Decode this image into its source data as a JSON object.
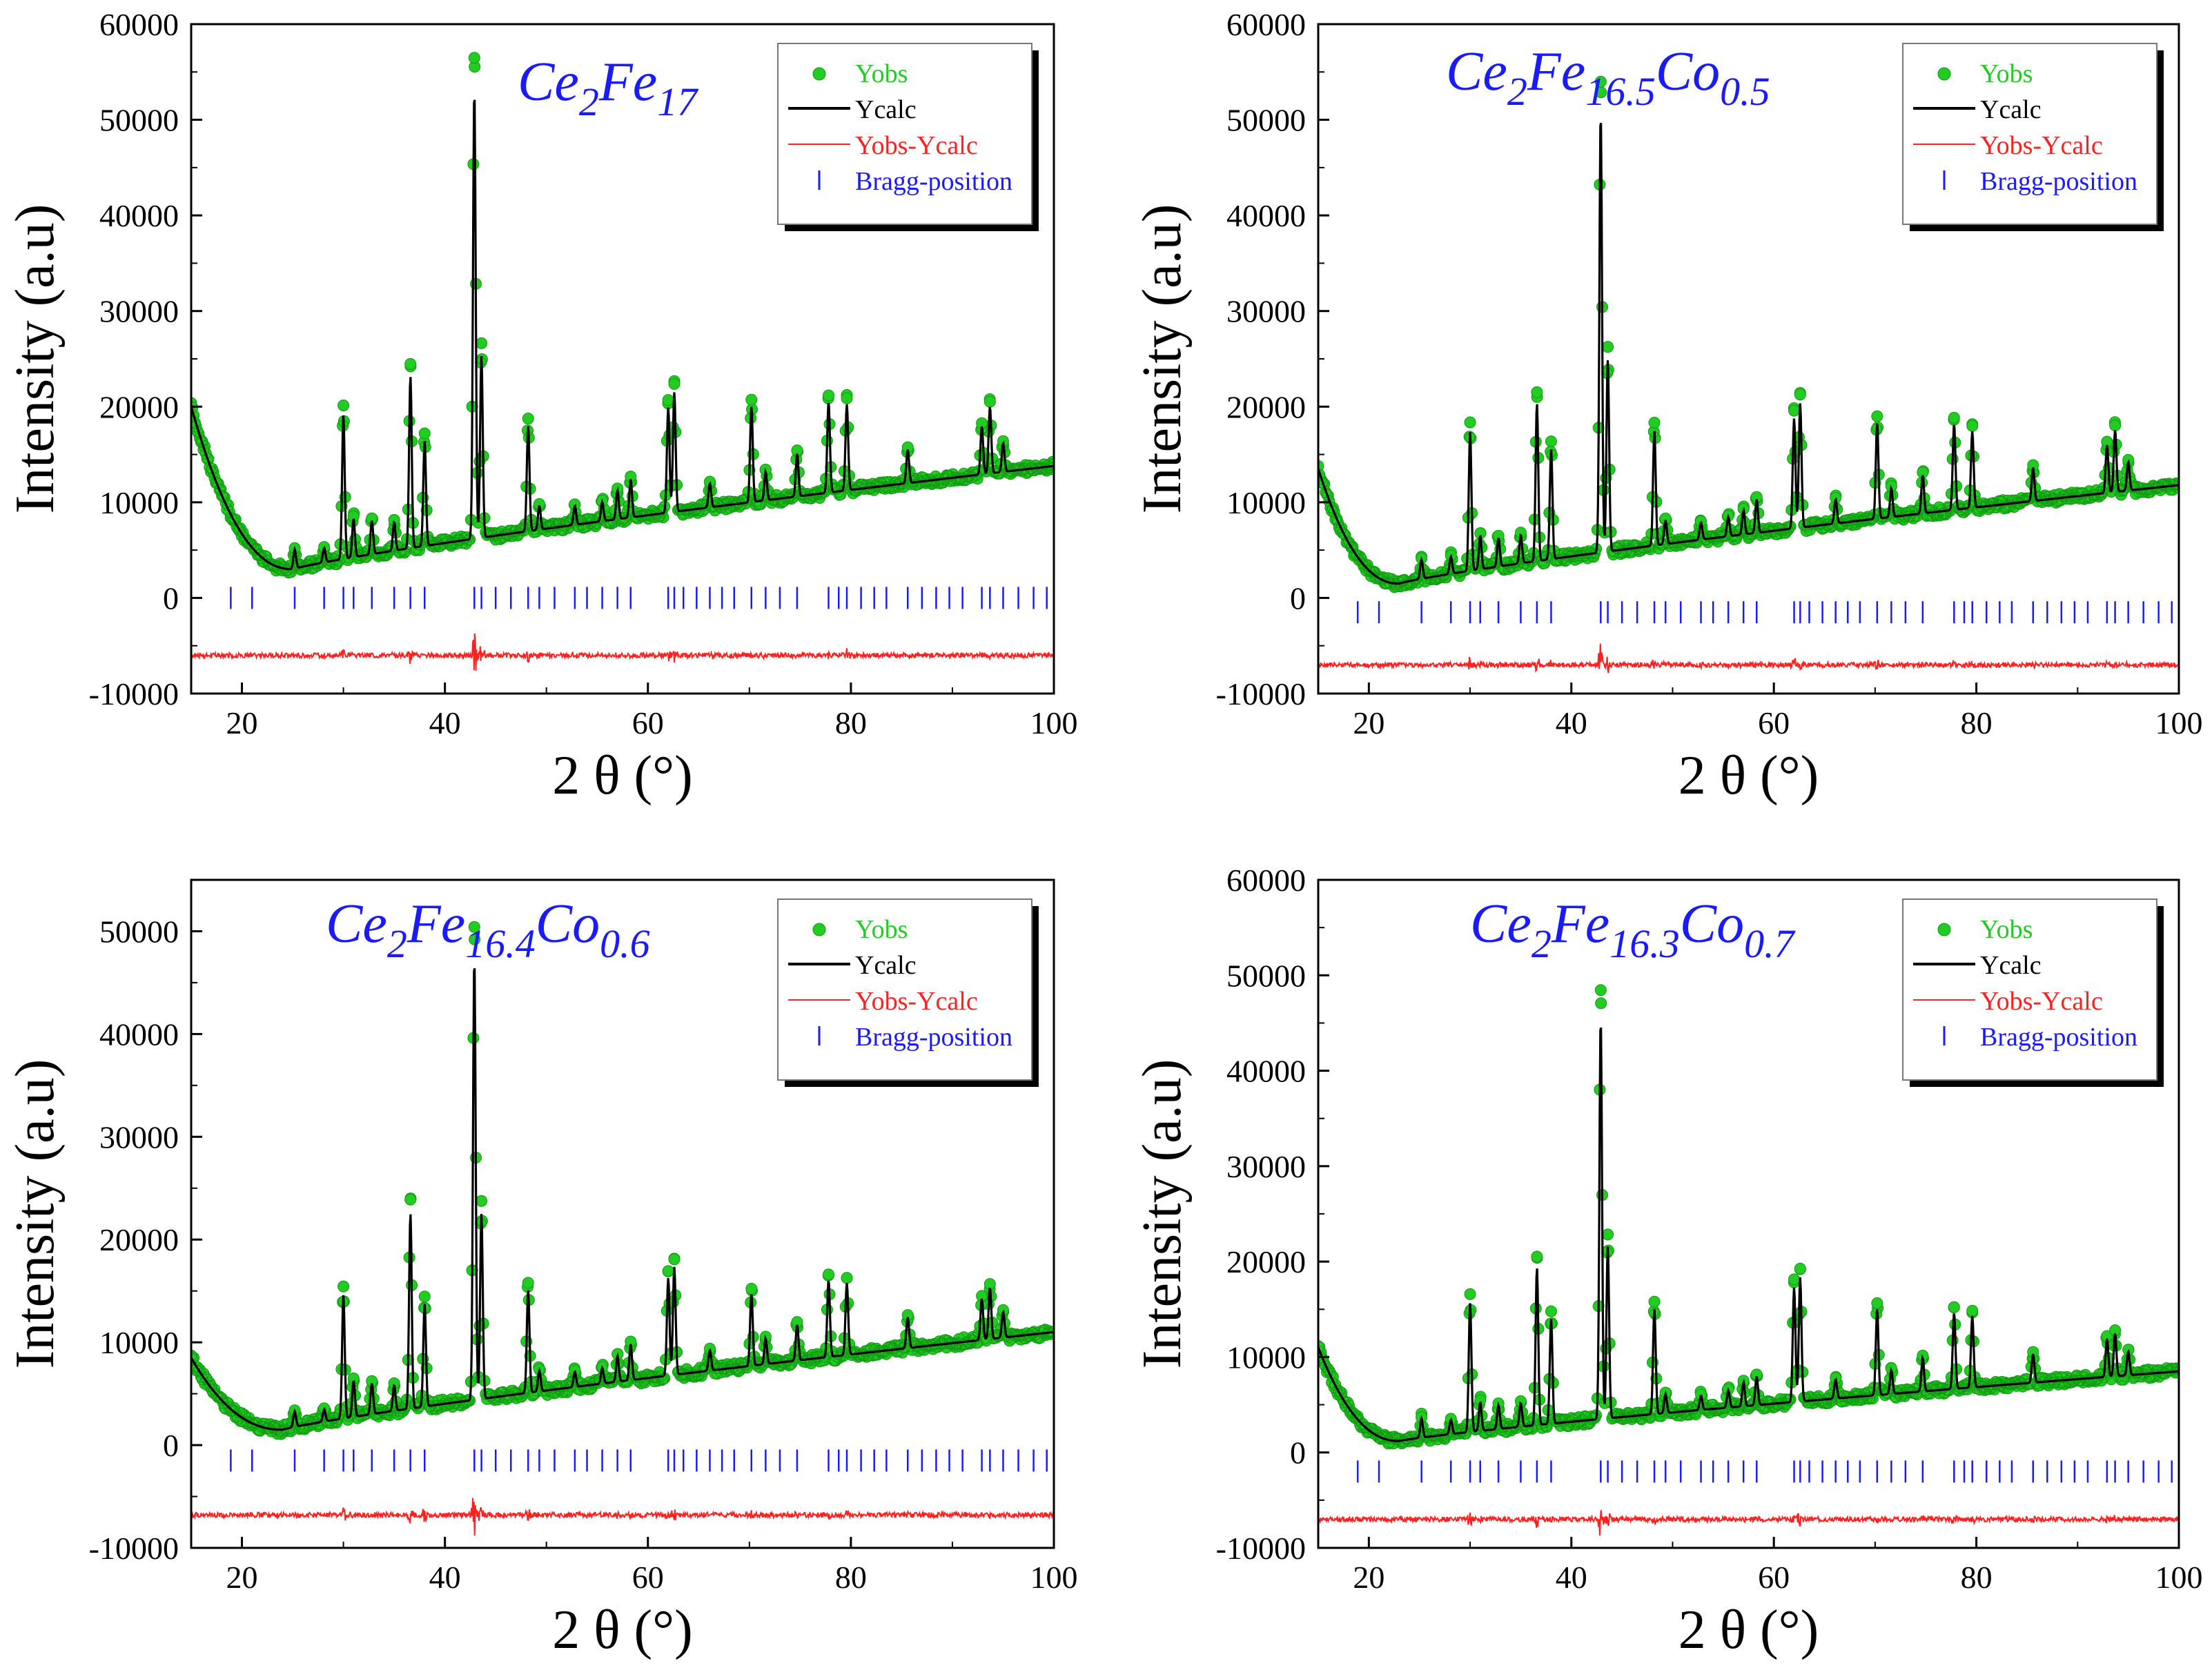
{
  "figure": {
    "legend_labels": {
      "yobs": "Yobs",
      "ycalc": "Ycalc",
      "diff": "Yobs-Ycalc",
      "bragg": "Bragg-position"
    },
    "colors": {
      "yobs": "#22cc22",
      "ycalc": "#000000",
      "diff": "#ff2020",
      "bragg": "#1a1aff",
      "title": "#1a1aff"
    }
  },
  "chart_data": [
    {
      "type": "line",
      "title": "Ce2Fe17",
      "title_parts": [
        {
          "text": "Ce",
          "sub": false
        },
        {
          "text": "2",
          "sub": true
        },
        {
          "text": "Fe",
          "sub": false
        },
        {
          "text": "17",
          "sub": true
        }
      ],
      "xlabel": "2 θ (°)",
      "ylabel": "Intensity (a.u)",
      "xlim": [
        15,
        100
      ],
      "ylim": [
        -10000,
        60000
      ],
      "yticks": [
        -10000,
        0,
        10000,
        20000,
        30000,
        40000,
        50000,
        60000
      ],
      "xticks": [
        20,
        40,
        60,
        80,
        100
      ],
      "legend_position": "top-right",
      "background": {
        "start": 20000,
        "min_value": 3000,
        "min_x": 25,
        "end": 13800
      },
      "peaks": [
        [
          25.2,
          2000
        ],
        [
          28.1,
          1500
        ],
        [
          30.0,
          15000
        ],
        [
          31.0,
          4000
        ],
        [
          32.8,
          3500
        ],
        [
          35.0,
          3000
        ],
        [
          36.6,
          18000
        ],
        [
          38.0,
          11000
        ],
        [
          42.9,
          47000
        ],
        [
          43.6,
          19000
        ],
        [
          48.2,
          11000
        ],
        [
          49.3,
          2500
        ],
        [
          52.8,
          2000
        ],
        [
          55.5,
          2000
        ],
        [
          57.0,
          3000
        ],
        [
          58.3,
          4000
        ],
        [
          62.0,
          11000
        ],
        [
          62.6,
          12500
        ],
        [
          66.1,
          2500
        ],
        [
          70.2,
          10000
        ],
        [
          71.6,
          3000
        ],
        [
          74.7,
          4500
        ],
        [
          77.8,
          9500
        ],
        [
          79.6,
          9000
        ],
        [
          85.6,
          3500
        ],
        [
          92.9,
          5000
        ],
        [
          93.7,
          7000
        ],
        [
          95.0,
          3000
        ]
      ],
      "bragg_positions": [
        18.9,
        21.0,
        25.2,
        28.1,
        30.0,
        31.0,
        32.8,
        35.0,
        36.6,
        38.0,
        42.9,
        43.6,
        45.0,
        46.5,
        48.2,
        49.3,
        50.8,
        52.8,
        54.0,
        55.5,
        57.0,
        58.3,
        62.0,
        62.6,
        63.5,
        64.8,
        66.1,
        67.3,
        68.5,
        70.2,
        71.6,
        73.0,
        74.7,
        77.8,
        78.8,
        79.6,
        81.0,
        82.3,
        83.5,
        85.6,
        87.0,
        88.4,
        89.7,
        91.0,
        92.9,
        93.7,
        95.0,
        96.5,
        98.0,
        99.3
      ],
      "bragg_level": 0,
      "diff_offset": -6000,
      "series": [
        {
          "name": "Yobs"
        },
        {
          "name": "Ycalc"
        },
        {
          "name": "Yobs-Ycalc"
        },
        {
          "name": "Bragg-position"
        }
      ]
    },
    {
      "type": "line",
      "title": "Ce2Fe16.5Co0.5",
      "title_parts": [
        {
          "text": "Ce",
          "sub": false
        },
        {
          "text": "2",
          "sub": true
        },
        {
          "text": "Fe",
          "sub": false
        },
        {
          "text": "16.5",
          "sub": true
        },
        {
          "text": "Co",
          "sub": false
        },
        {
          "text": "0.5",
          "sub": true
        }
      ],
      "xlabel": "2 θ (°)",
      "ylabel": "Intensity (a.u)",
      "xlim": [
        15,
        100
      ],
      "ylim": [
        -10000,
        60000
      ],
      "yticks": [
        -10000,
        0,
        10000,
        20000,
        30000,
        40000,
        50000,
        60000
      ],
      "xticks": [
        20,
        40,
        60,
        80,
        100
      ],
      "legend_position": "top-right",
      "background": {
        "start": 13500,
        "min_value": 1500,
        "min_x": 23,
        "end": 11800
      },
      "peaks": [
        [
          25.2,
          2000
        ],
        [
          28.1,
          1800
        ],
        [
          30.0,
          14500
        ],
        [
          31.0,
          3500
        ],
        [
          32.8,
          3000
        ],
        [
          35.0,
          3000
        ],
        [
          36.6,
          16500
        ],
        [
          38.0,
          11500
        ],
        [
          42.9,
          46000
        ],
        [
          43.6,
          20000
        ],
        [
          48.2,
          12000
        ],
        [
          49.3,
          2500
        ],
        [
          52.8,
          1800
        ],
        [
          55.5,
          2000
        ],
        [
          57.0,
          2500
        ],
        [
          58.3,
          3500
        ],
        [
          62.0,
          11500
        ],
        [
          62.6,
          13000
        ],
        [
          66.1,
          2500
        ],
        [
          70.2,
          10000
        ],
        [
          71.6,
          3000
        ],
        [
          74.7,
          4000
        ],
        [
          77.8,
          9000
        ],
        [
          79.6,
          8000
        ],
        [
          85.6,
          3500
        ],
        [
          92.9,
          5000
        ],
        [
          93.7,
          6500
        ],
        [
          95.0,
          3000
        ]
      ],
      "bragg_positions": [
        18.9,
        21.0,
        25.2,
        28.1,
        30.0,
        31.0,
        32.8,
        35.0,
        36.6,
        38.0,
        42.9,
        43.6,
        45.0,
        46.5,
        48.2,
        49.3,
        50.8,
        52.8,
        54.0,
        55.5,
        57.0,
        58.3,
        62.0,
        62.6,
        63.5,
        64.8,
        66.1,
        67.3,
        68.5,
        70.2,
        71.6,
        73.0,
        74.7,
        77.8,
        78.8,
        79.6,
        81.0,
        82.3,
        83.5,
        85.6,
        87.0,
        88.4,
        89.7,
        91.0,
        92.9,
        93.7,
        95.0,
        96.5,
        98.0,
        99.3
      ],
      "bragg_level": -1500,
      "diff_offset": -7000,
      "series": [
        {
          "name": "Yobs"
        },
        {
          "name": "Ycalc"
        },
        {
          "name": "Yobs-Ycalc"
        },
        {
          "name": "Bragg-position"
        }
      ]
    },
    {
      "type": "line",
      "title": "Ce2Fe16.4Co0.6",
      "title_parts": [
        {
          "text": "Ce",
          "sub": false
        },
        {
          "text": "2",
          "sub": true
        },
        {
          "text": "Fe",
          "sub": false
        },
        {
          "text": "16.4",
          "sub": true
        },
        {
          "text": "Co",
          "sub": false
        },
        {
          "text": "0.6",
          "sub": true
        }
      ],
      "xlabel": "2 θ (°)",
      "ylabel": "Intensity (a.u)",
      "xlim": [
        15,
        100
      ],
      "ylim": [
        -10000,
        55000
      ],
      "yticks": [
        -10000,
        0,
        10000,
        20000,
        30000,
        40000,
        50000
      ],
      "xticks": [
        20,
        40,
        60,
        80,
        100
      ],
      "legend_position": "top-right",
      "background": {
        "start": 8500,
        "min_value": 1500,
        "min_x": 24,
        "end": 11000
      },
      "peaks": [
        [
          25.2,
          1500
        ],
        [
          28.1,
          1200
        ],
        [
          30.0,
          12000
        ],
        [
          31.0,
          3500
        ],
        [
          32.8,
          3000
        ],
        [
          35.0,
          2500
        ],
        [
          36.6,
          19000
        ],
        [
          38.0,
          10000
        ],
        [
          42.9,
          43000
        ],
        [
          43.6,
          18000
        ],
        [
          48.2,
          10000
        ],
        [
          49.3,
          2000
        ],
        [
          52.8,
          1500
        ],
        [
          55.5,
          1500
        ],
        [
          57.0,
          2500
        ],
        [
          58.3,
          3500
        ],
        [
          62.0,
          9500
        ],
        [
          62.6,
          10500
        ],
        [
          66.1,
          2000
        ],
        [
          70.2,
          7000
        ],
        [
          71.6,
          2500
        ],
        [
          74.7,
          3500
        ],
        [
          77.8,
          7500
        ],
        [
          79.6,
          7000
        ],
        [
          85.6,
          3000
        ],
        [
          92.9,
          4000
        ],
        [
          93.7,
          5000
        ],
        [
          95.0,
          2500
        ]
      ],
      "bragg_positions": [
        18.9,
        21.0,
        25.2,
        28.1,
        30.0,
        31.0,
        32.8,
        35.0,
        36.6,
        38.0,
        42.9,
        43.6,
        45.0,
        46.5,
        48.2,
        49.3,
        50.8,
        52.8,
        54.0,
        55.5,
        57.0,
        58.3,
        62.0,
        62.6,
        63.5,
        64.8,
        66.1,
        67.3,
        68.5,
        70.2,
        71.6,
        73.0,
        74.7,
        77.8,
        78.8,
        79.6,
        81.0,
        82.3,
        83.5,
        85.6,
        87.0,
        88.4,
        89.7,
        91.0,
        92.9,
        93.7,
        95.0,
        96.5,
        98.0,
        99.3
      ],
      "bragg_level": -1500,
      "diff_offset": -6800,
      "series": [
        {
          "name": "Yobs"
        },
        {
          "name": "Ycalc"
        },
        {
          "name": "Yobs-Ycalc"
        },
        {
          "name": "Bragg-position"
        }
      ]
    },
    {
      "type": "line",
      "title": "Ce2Fe16.3Co0.7",
      "title_parts": [
        {
          "text": "Ce",
          "sub": false
        },
        {
          "text": "2",
          "sub": true
        },
        {
          "text": "Fe",
          "sub": false
        },
        {
          "text": "16.3",
          "sub": true
        },
        {
          "text": "Co",
          "sub": false
        },
        {
          "text": "0.7",
          "sub": true
        }
      ],
      "xlabel": "2 θ (°)",
      "ylabel": "Intensity (a.u)",
      "xlim": [
        15,
        100
      ],
      "ylim": [
        -10000,
        60000
      ],
      "yticks": [
        -10000,
        0,
        10000,
        20000,
        30000,
        40000,
        50000,
        60000
      ],
      "xticks": [
        20,
        40,
        60,
        80,
        100
      ],
      "legend_position": "top-right",
      "background": {
        "start": 11000,
        "min_value": 1200,
        "min_x": 23,
        "end": 8500
      },
      "peaks": [
        [
          25.2,
          2000
        ],
        [
          28.1,
          1500
        ],
        [
          30.0,
          13500
        ],
        [
          31.0,
          3000
        ],
        [
          32.8,
          2500
        ],
        [
          35.0,
          2500
        ],
        [
          36.6,
          16500
        ],
        [
          38.0,
          11000
        ],
        [
          42.9,
          42000
        ],
        [
          43.6,
          18000
        ],
        [
          48.2,
          11000
        ],
        [
          49.3,
          2000
        ],
        [
          52.8,
          1500
        ],
        [
          55.5,
          1800
        ],
        [
          57.0,
          2500
        ],
        [
          58.3,
          3000
        ],
        [
          62.0,
          12000
        ],
        [
          62.6,
          13000
        ],
        [
          66.1,
          2000
        ],
        [
          70.2,
          9000
        ],
        [
          71.6,
          2500
        ],
        [
          74.7,
          3500
        ],
        [
          77.8,
          8000
        ],
        [
          79.6,
          7500
        ],
        [
          85.6,
          3000
        ],
        [
          92.9,
          4000
        ],
        [
          93.7,
          4500
        ],
        [
          95.0,
          2500
        ]
      ],
      "bragg_positions": [
        18.9,
        21.0,
        25.2,
        28.1,
        30.0,
        31.0,
        32.8,
        35.0,
        36.6,
        38.0,
        42.9,
        43.6,
        45.0,
        46.5,
        48.2,
        49.3,
        50.8,
        52.8,
        54.0,
        55.5,
        57.0,
        58.3,
        62.0,
        62.6,
        63.5,
        64.8,
        66.1,
        67.3,
        68.5,
        70.2,
        71.6,
        73.0,
        74.7,
        77.8,
        78.8,
        79.6,
        81.0,
        82.3,
        83.5,
        85.6,
        87.0,
        88.4,
        89.7,
        91.0,
        92.9,
        93.7,
        95.0,
        96.5,
        98.0,
        99.3
      ],
      "bragg_level": -2000,
      "diff_offset": -7000,
      "series": [
        {
          "name": "Yobs"
        },
        {
          "name": "Ycalc"
        },
        {
          "name": "Yobs-Ycalc"
        },
        {
          "name": "Bragg-position"
        }
      ]
    }
  ]
}
